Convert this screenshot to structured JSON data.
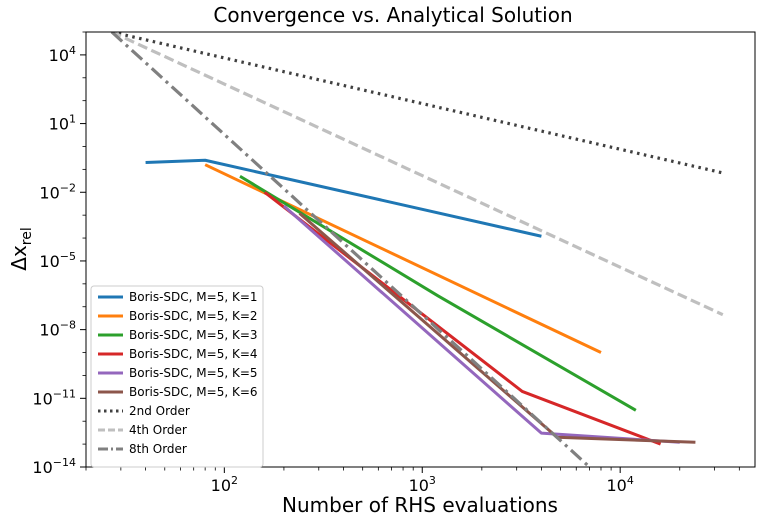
{
  "chart_data": {
    "type": "line",
    "title": "Convergence vs. Analytical Solution",
    "xlabel": "Number of RHS evaluations",
    "ylabel_base": "Δx",
    "ylabel_sub": "rel",
    "x_scale": "log",
    "y_scale": "log",
    "xlim": [
      20,
      48000
    ],
    "ylim": [
      1e-14,
      100000.0
    ],
    "x_ticks": [
      {
        "value": 100,
        "base": "10",
        "exp": "2"
      },
      {
        "value": 1000,
        "base": "10",
        "exp": "3"
      },
      {
        "value": 10000,
        "base": "10",
        "exp": "4"
      }
    ],
    "y_ticks": [
      {
        "value": 1e-14,
        "base": "10",
        "exp": "−14"
      },
      {
        "value": 1e-11,
        "base": "10",
        "exp": "−11"
      },
      {
        "value": 1e-08,
        "base": "10",
        "exp": "−8"
      },
      {
        "value": 1e-05,
        "base": "10",
        "exp": "−5"
      },
      {
        "value": 0.01,
        "base": "10",
        "exp": "−2"
      },
      {
        "value": 10,
        "base": "10",
        "exp": "1"
      },
      {
        "value": 10000,
        "base": "10",
        "exp": "4"
      }
    ],
    "grid": false,
    "legend_position": "lower-left",
    "series": [
      {
        "name": "Boris-SDC, M=5, K=1",
        "color": "#1f77b4",
        "style": "solid",
        "x": [
          40,
          80,
          4000
        ],
        "y": [
          0.2,
          0.25,
          0.00012
        ]
      },
      {
        "name": "Boris-SDC, M=5, K=2",
        "color": "#ff7f0e",
        "style": "solid",
        "x": [
          80,
          8000
        ],
        "y": [
          0.16,
          1e-09
        ]
      },
      {
        "name": "Boris-SDC, M=5, K=3",
        "color": "#2ca02c",
        "style": "solid",
        "x": [
          120,
          1200,
          12000
        ],
        "y": [
          0.05,
          3e-07,
          3e-12
        ]
      },
      {
        "name": "Boris-SDC, M=5, K=4",
        "color": "#d62728",
        "style": "solid",
        "x": [
          160,
          3200,
          16000
        ],
        "y": [
          0.01,
          2e-11,
          1e-13
        ]
      },
      {
        "name": "Boris-SDC, M=5, K=5",
        "color": "#9467bd",
        "style": "solid",
        "x": [
          200,
          4000,
          20000
        ],
        "y": [
          0.0025,
          3e-13,
          1.2e-13
        ]
      },
      {
        "name": "Boris-SDC, M=5, K=6",
        "color": "#8c564b",
        "style": "solid",
        "x": [
          240,
          4800,
          24000
        ],
        "y": [
          0.0012,
          2e-13,
          1.2e-13
        ]
      },
      {
        "name": "2nd Order",
        "color": "#404040",
        "style": "dotted",
        "x": [
          27,
          33000
        ],
        "y": [
          100000.0,
          0.07
        ]
      },
      {
        "name": "4th Order",
        "color": "#bfbfbf",
        "style": "dashed",
        "x": [
          27,
          33000
        ],
        "y": [
          100000.0,
          4.5e-08
        ]
      },
      {
        "name": "8th Order",
        "color": "#808080",
        "style": "dashdot",
        "x": [
          27,
          7000
        ],
        "y": [
          100000.0,
          1e-14
        ]
      }
    ]
  }
}
